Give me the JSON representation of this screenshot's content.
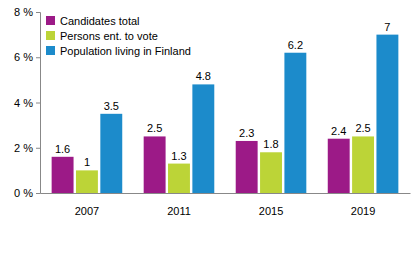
{
  "chart_data": {
    "type": "bar",
    "categories": [
      "2007",
      "2011",
      "2015",
      "2019"
    ],
    "series": [
      {
        "name": "Candidates total",
        "color": "#9c1a87",
        "values": [
          1.6,
          2.5,
          2.3,
          2.4
        ]
      },
      {
        "name": "Persons ent. to vote",
        "color": "#bcd437",
        "values": [
          1,
          1.3,
          1.8,
          2.5
        ]
      },
      {
        "name": "Population living in Finland",
        "color": "#1c8bcb",
        "values": [
          3.5,
          4.8,
          6.2,
          7
        ]
      }
    ],
    "ylim": [
      0,
      8
    ],
    "yticks": [
      {
        "value": 0,
        "label": "0 %"
      },
      {
        "value": 2,
        "label": "2 %"
      },
      {
        "value": 4,
        "label": "4 %"
      },
      {
        "value": 6,
        "label": "6 %"
      },
      {
        "value": 8,
        "label": "8 %"
      }
    ],
    "grid": false,
    "legend": "upper left",
    "data_labels": true
  }
}
